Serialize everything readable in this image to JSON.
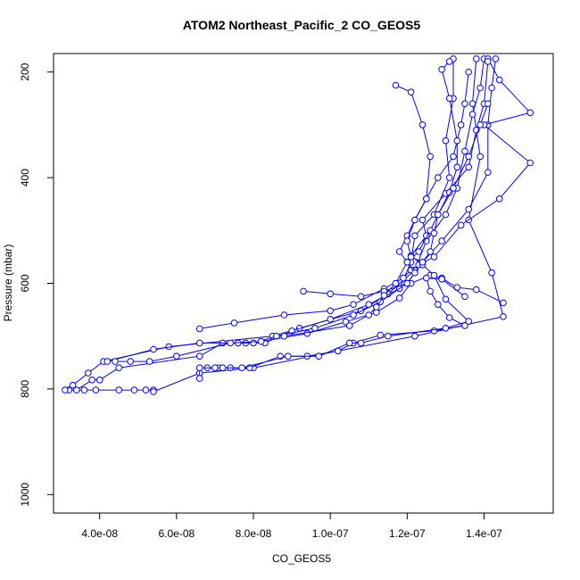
{
  "chart_data": {
    "type": "line",
    "title": "ATOM2 Northeast_Pacific_2 CO_GEOS5",
    "xlabel": "CO_GEOS5",
    "ylabel": "Pressure (mbar)",
    "xlim": [
      2.8e-08,
      1.58e-07
    ],
    "ylim": [
      1035,
      165
    ],
    "y_reversed": true,
    "grid": false,
    "legend": "none",
    "x_ticks": [
      {
        "value": 4e-08,
        "label": "4.0e-08"
      },
      {
        "value": 6e-08,
        "label": "6.0e-08"
      },
      {
        "value": 8e-08,
        "label": "8.0e-08"
      },
      {
        "value": 1e-07,
        "label": "1.0e-07"
      },
      {
        "value": 1.2e-07,
        "label": "1.2e-07"
      },
      {
        "value": 1.4e-07,
        "label": "1.4e-07"
      }
    ],
    "y_ticks": [
      {
        "value": 200,
        "label": "200"
      },
      {
        "value": 400,
        "label": "400"
      },
      {
        "value": 600,
        "label": "600"
      },
      {
        "value": 800,
        "label": "800"
      },
      {
        "value": 1000,
        "label": "1000"
      }
    ],
    "color": "#0000ff",
    "series": [
      {
        "points": [
          [
            3.2e-08,
            802
          ],
          [
            3.6e-08,
            802
          ],
          [
            3.9e-08,
            802
          ],
          [
            4.5e-08,
            802
          ],
          [
            4.9e-08,
            802
          ],
          [
            5.2e-08,
            802
          ],
          [
            5.4e-08,
            802
          ]
        ]
      },
      {
        "points": [
          [
            5.4e-08,
            805
          ],
          [
            6.6e-08,
            770
          ],
          [
            8e-08,
            760
          ],
          [
            1.02e-07,
            728
          ],
          [
            1.22e-07,
            700
          ],
          [
            1.45e-07,
            663
          ],
          [
            1.42e-07,
            580
          ],
          [
            1.36e-07,
            480
          ],
          [
            1.39e-07,
            360
          ],
          [
            1.37e-07,
            260
          ],
          [
            1.38e-07,
            175
          ]
        ]
      },
      {
        "points": [
          [
            3.1e-08,
            802
          ],
          [
            3.3e-08,
            793
          ],
          [
            3.7e-08,
            770
          ],
          [
            4.1e-08,
            748
          ],
          [
            5.8e-08,
            720
          ],
          [
            8.5e-08,
            700
          ],
          [
            9.2e-08,
            685
          ],
          [
            1.08e-07,
            652
          ],
          [
            1.15e-07,
            620
          ],
          [
            1.22e-07,
            575
          ],
          [
            1.25e-07,
            520
          ],
          [
            1.3e-07,
            470
          ],
          [
            1.33e-07,
            420
          ],
          [
            1.35e-07,
            350
          ],
          [
            1.37e-07,
            280
          ],
          [
            1.39e-07,
            230
          ],
          [
            1.4e-07,
            175
          ]
        ]
      },
      {
        "points": [
          [
            3.4e-08,
            802
          ],
          [
            3.8e-08,
            783
          ],
          [
            4e-08,
            783
          ],
          [
            4.5e-08,
            760
          ],
          [
            6.6e-08,
            738
          ],
          [
            7.2e-08,
            713
          ],
          [
            7.8e-08,
            713
          ],
          [
            8.3e-08,
            713
          ],
          [
            9e-08,
            690
          ],
          [
            1e-07,
            668
          ],
          [
            1.1e-07,
            640
          ],
          [
            1.18e-07,
            610
          ],
          [
            1.21e-07,
            560
          ],
          [
            1.22e-07,
            510
          ],
          [
            1.27e-07,
            470
          ],
          [
            1.31e-07,
            400
          ],
          [
            1.3e-07,
            330
          ],
          [
            1.32e-07,
            250
          ],
          [
            1.32e-07,
            175
          ]
        ]
      },
      {
        "points": [
          [
            4.2e-08,
            748
          ],
          [
            5.4e-08,
            725
          ],
          [
            6.6e-08,
            713
          ],
          [
            7.6e-08,
            713
          ],
          [
            8e-08,
            713
          ],
          [
            8.6e-08,
            700
          ],
          [
            9.6e-08,
            685
          ],
          [
            1.06e-07,
            660
          ],
          [
            1.13e-07,
            635
          ],
          [
            1.2e-07,
            600
          ],
          [
            1.24e-07,
            560
          ],
          [
            1.29e-07,
            520
          ],
          [
            1.36e-07,
            460
          ],
          [
            1.41e-07,
            390
          ],
          [
            1.41e-07,
            300
          ],
          [
            1.42e-07,
            230
          ],
          [
            1.43e-07,
            175
          ]
        ]
      },
      {
        "points": [
          [
            4.4e-08,
            748
          ],
          [
            4.8e-08,
            748
          ],
          [
            5.3e-08,
            748
          ],
          [
            6e-08,
            738
          ],
          [
            7.4e-08,
            713
          ],
          [
            8.2e-08,
            710
          ],
          [
            9.4e-08,
            695
          ],
          [
            1.04e-07,
            673
          ],
          [
            1.12e-07,
            655
          ],
          [
            1.18e-07,
            628
          ],
          [
            1.21e-07,
            600
          ],
          [
            1.26e-07,
            585
          ],
          [
            1.29e-07,
            590
          ],
          [
            1.33e-07,
            608
          ],
          [
            1.38e-07,
            612
          ],
          [
            1.45e-07,
            637
          ]
        ]
      },
      {
        "points": [
          [
            6.6e-08,
            686
          ],
          [
            7.5e-08,
            675
          ],
          [
            8.8e-08,
            660
          ],
          [
            1e-07,
            652
          ],
          [
            1.06e-07,
            640
          ],
          [
            1.14e-07,
            610
          ],
          [
            1.19e-07,
            590
          ],
          [
            1.21e-07,
            575
          ],
          [
            1.23e-07,
            565
          ],
          [
            1.27e-07,
            550
          ],
          [
            1.34e-07,
            490
          ],
          [
            1.44e-07,
            440
          ],
          [
            1.52e-07,
            372
          ],
          [
            1.4e-07,
            300
          ],
          [
            1.52e-07,
            277
          ],
          [
            1.44e-07,
            215
          ],
          [
            1.41e-07,
            175
          ]
        ]
      },
      {
        "points": [
          [
            6.8e-08,
            760
          ],
          [
            7.1e-08,
            760
          ],
          [
            7.4e-08,
            760
          ],
          [
            7.9e-08,
            760
          ],
          [
            8.7e-08,
            738
          ],
          [
            9.4e-08,
            738
          ],
          [
            1.02e-07,
            728
          ],
          [
            1.06e-07,
            713
          ],
          [
            1.13e-07,
            698
          ],
          [
            1.27e-07,
            690
          ],
          [
            1.35e-07,
            680
          ],
          [
            1.31e-07,
            665
          ],
          [
            1.28e-07,
            640
          ],
          [
            1.26e-07,
            615
          ],
          [
            1.25e-07,
            590
          ],
          [
            1.29e-07,
            592
          ],
          [
            1.35e-07,
            625
          ]
        ]
      },
      {
        "points": [
          [
            6.6e-08,
            780
          ],
          [
            6.6e-08,
            760
          ],
          [
            7e-08,
            760
          ],
          [
            7.2e-08,
            760
          ],
          [
            7.7e-08,
            760
          ],
          [
            8.9e-08,
            738
          ],
          [
            9.7e-08,
            738
          ],
          [
            1.05e-07,
            713
          ],
          [
            1.08e-07,
            713
          ],
          [
            1.15e-07,
            700
          ],
          [
            1.3e-07,
            685
          ],
          [
            1.36e-07,
            672
          ],
          [
            1.3e-07,
            630
          ],
          [
            1.27e-07,
            585
          ],
          [
            1.24e-07,
            565
          ],
          [
            1.21e-07,
            548
          ],
          [
            1.25e-07,
            510
          ],
          [
            1.24e-07,
            480
          ],
          [
            1.3e-07,
            430
          ],
          [
            1.36e-07,
            380
          ],
          [
            1.38e-07,
            310
          ],
          [
            1.4e-07,
            260
          ],
          [
            1.41e-07,
            180
          ]
        ]
      },
      {
        "points": [
          [
            9.3e-08,
            615
          ],
          [
            1e-07,
            620
          ],
          [
            1.08e-07,
            625
          ],
          [
            1.14e-07,
            615
          ],
          [
            1.2e-07,
            600
          ],
          [
            1.22e-07,
            580
          ],
          [
            1.2e-07,
            560
          ],
          [
            1.18e-07,
            540
          ],
          [
            1.2e-07,
            510
          ],
          [
            1.22e-07,
            480
          ],
          [
            1.25e-07,
            440
          ],
          [
            1.28e-07,
            400
          ],
          [
            1.32e-07,
            360
          ],
          [
            1.34e-07,
            300
          ],
          [
            1.35e-07,
            260
          ],
          [
            1.36e-07,
            200
          ]
        ]
      },
      {
        "points": [
          [
            1.31e-07,
            180
          ],
          [
            1.29e-07,
            195
          ],
          [
            1.31e-07,
            250
          ],
          [
            1.33e-07,
            330
          ],
          [
            1.33e-07,
            380
          ],
          [
            1.31e-07,
            428
          ],
          [
            1.28e-07,
            470
          ],
          [
            1.26e-07,
            500
          ],
          [
            1.23e-07,
            540
          ],
          [
            1.2e-07,
            560
          ],
          [
            1.17e-07,
            600
          ],
          [
            1.14e-07,
            623
          ],
          [
            1.12e-07,
            645
          ],
          [
            1.1e-07,
            660
          ],
          [
            1.05e-07,
            680
          ],
          [
            8.8e-08,
            700
          ]
        ]
      },
      {
        "points": [
          [
            1.17e-07,
            225
          ],
          [
            1.21e-07,
            238
          ],
          [
            1.24e-07,
            300
          ],
          [
            1.26e-07,
            360
          ],
          [
            1.25e-07,
            440
          ],
          [
            1.22e-07,
            480
          ],
          [
            1.2e-07,
            520
          ],
          [
            1.21e-07,
            550
          ],
          [
            1.24e-07,
            560
          ],
          [
            1.26e-07,
            540
          ],
          [
            1.27e-07,
            505
          ],
          [
            1.28e-07,
            470
          ],
          [
            1.32e-07,
            420
          ],
          [
            1.36e-07,
            360
          ],
          [
            1.39e-07,
            300
          ],
          [
            1.41e-07,
            260
          ]
        ]
      }
    ]
  }
}
